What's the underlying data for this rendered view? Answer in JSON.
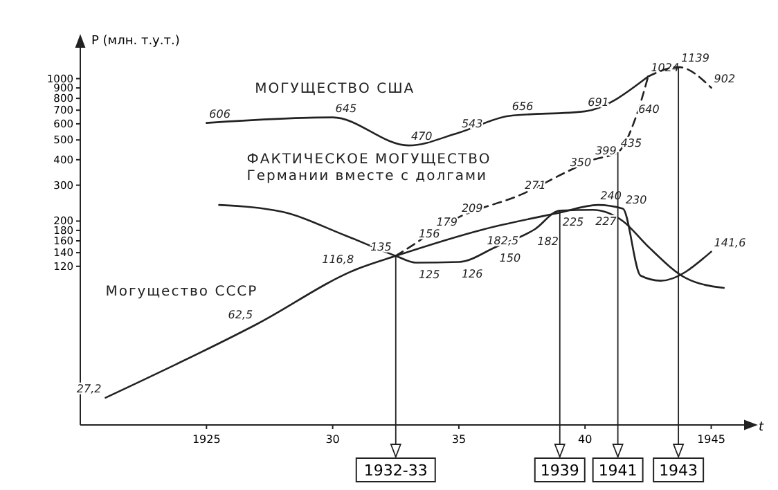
{
  "chart_data": {
    "type": "line",
    "ylabel": "P (млн. т.у.т.)",
    "xlabel": "t",
    "log": "y",
    "xlim": [
      1920,
      1946
    ],
    "ylim": [
      20,
      1300
    ],
    "xticks": [
      1925,
      {
        "value": 1930,
        "label": "30"
      },
      {
        "value": 1935,
        "label": "35"
      },
      {
        "value": 1940,
        "label": "40"
      },
      1945
    ],
    "yticks": [
      120,
      140,
      160,
      180,
      200,
      300,
      400,
      500,
      600,
      700,
      800,
      900,
      1000
    ],
    "marker": "none",
    "grid": false,
    "series": [
      {
        "name": "МОГУЩЕСТВО США",
        "color": "#222222",
        "line_style": "solid",
        "x": [
          1925,
          1930,
          1933,
          1935,
          1937,
          1940,
          1942.5
        ],
        "values": [
          606,
          645,
          470,
          543,
          656,
          691,
          1024
        ],
        "value_labels": [
          "606",
          "645",
          "470",
          "543",
          "656",
          "691",
          "1024"
        ]
      },
      {
        "color": "#222222",
        "line_style": "dashed",
        "x": [
          1942.5,
          1943.7,
          1945
        ],
        "values": [
          1024,
          1139,
          902
        ],
        "value_labels": [
          null,
          "1139",
          "902"
        ]
      },
      {
        "name": "ФАКТИЧЕСКОЕ МОГУЩЕСТВО\nГермании вместе с долгами",
        "color": "#222222",
        "line_style": "solid",
        "x": [
          1925.5,
          1928,
          1930.5,
          1932.5,
          1933.3,
          1935,
          1936.5,
          1938,
          1939,
          1940.3,
          1941.5,
          1942.5,
          1944,
          1945.5
        ],
        "values": [
          240,
          222,
          170,
          135,
          125,
          126,
          150,
          182,
          225,
          227,
          200,
          150,
          105,
          94
        ],
        "value_labels": [
          null,
          null,
          null,
          null,
          "125",
          "126",
          "150",
          "182",
          "225",
          "227",
          null,
          null,
          null,
          null
        ]
      },
      {
        "color": "#222222",
        "line_style": "dashed",
        "x": [
          1932.5,
          1933.3,
          1934,
          1935,
          1937.5,
          1939.3,
          1940.3,
          1941.3,
          1942,
          1942.5
        ],
        "values": [
          135,
          156,
          179,
          209,
          271,
          350,
          399,
          435,
          640,
          1024
        ],
        "value_labels": [
          null,
          "156",
          "179",
          "209",
          "271",
          "350",
          "399",
          "435",
          "640",
          null
        ]
      },
      {
        "name": "Могущество СССР",
        "color": "#222222",
        "line_style": "solid",
        "x": [
          1921,
          1927,
          1931,
          1932.5,
          1936,
          1939,
          1940.5,
          1941.5,
          1942.2,
          1943,
          1945
        ],
        "values": [
          27.2,
          62.5,
          116.8,
          135,
          182.5,
          220,
          240,
          230,
          108,
          102,
          141.6
        ],
        "value_labels": [
          "27,2",
          "62,5",
          "116,8",
          "135",
          "182,5",
          null,
          "240",
          "230",
          null,
          null,
          "141,6"
        ]
      }
    ],
    "annotations": [
      {
        "text": "1932-33",
        "x": 1932.5,
        "y": 135
      },
      {
        "text": "1939",
        "x": 1939,
        "y": 225
      },
      {
        "text": "1941",
        "x": 1941.3,
        "y": 435
      },
      {
        "text": "1943",
        "x": 1943.7,
        "y": 1139
      }
    ]
  }
}
